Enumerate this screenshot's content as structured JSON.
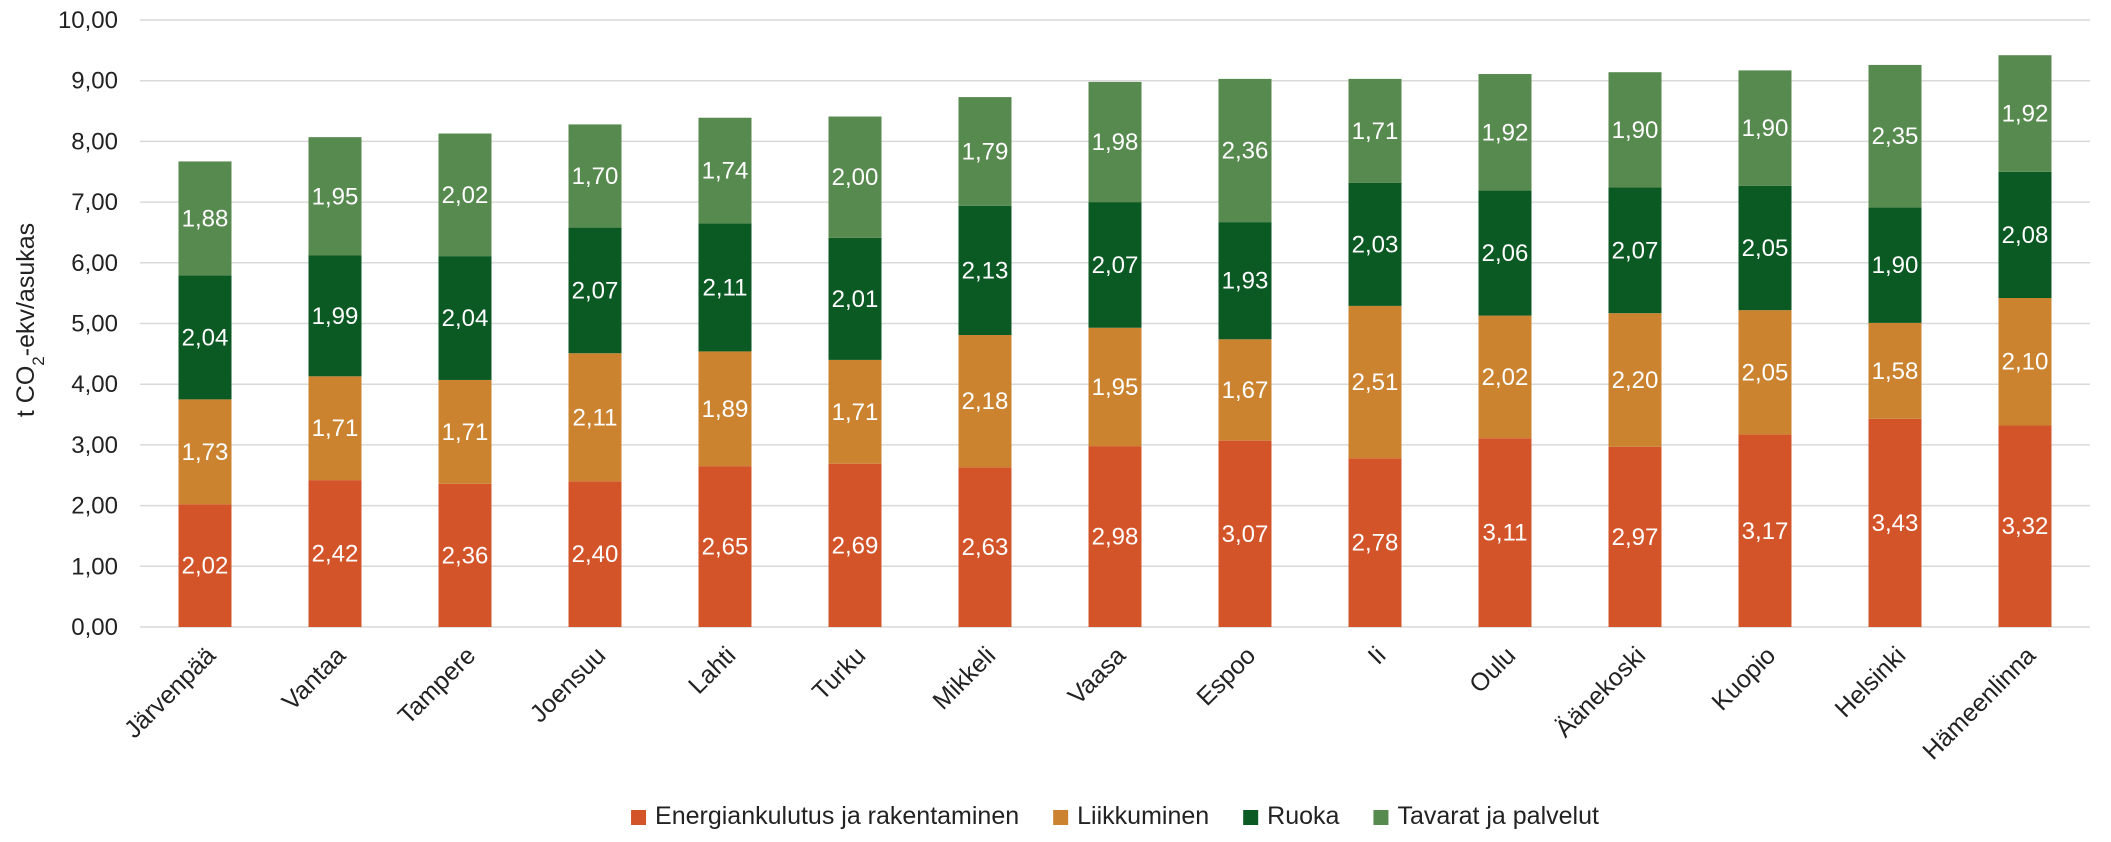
{
  "chart_data": {
    "type": "bar",
    "stacked": true,
    "ylabel_prefix": "t CO",
    "ylabel_sub": "2",
    "ylabel_suffix": "-ekv/asukas",
    "ylim": [
      0,
      10
    ],
    "ytick_step": 1,
    "ytick_labels": [
      "0,00",
      "1,00",
      "2,00",
      "3,00",
      "4,00",
      "5,00",
      "6,00",
      "7,00",
      "8,00",
      "9,00",
      "10,00"
    ],
    "grid": true,
    "legend_position": "bottom",
    "categories": [
      "Järvenpää",
      "Vantaa",
      "Tampere",
      "Joensuu",
      "Lahti",
      "Turku",
      "Mikkeli",
      "Vaasa",
      "Espoo",
      "Ii",
      "Oulu",
      "Äänekoski",
      "Kuopio",
      "Helsinki",
      "Hämeenlinna"
    ],
    "series": [
      {
        "name": "Energiankulutus ja rakentaminen",
        "color": "#d4542a",
        "values": [
          2.02,
          2.42,
          2.36,
          2.4,
          2.65,
          2.69,
          2.63,
          2.98,
          3.07,
          2.78,
          3.11,
          2.97,
          3.17,
          3.43,
          3.32
        ]
      },
      {
        "name": "Liikkuminen",
        "color": "#cc8330",
        "values": [
          1.73,
          1.71,
          1.71,
          2.11,
          1.89,
          1.71,
          2.18,
          1.95,
          1.67,
          2.51,
          2.02,
          2.2,
          2.05,
          1.58,
          2.1
        ]
      },
      {
        "name": "Ruoka",
        "color": "#0b5a24",
        "values": [
          2.04,
          1.99,
          2.04,
          2.07,
          2.11,
          2.01,
          2.13,
          2.07,
          1.93,
          2.03,
          2.06,
          2.07,
          2.05,
          1.9,
          2.08
        ]
      },
      {
        "name": "Tavarat ja palvelut",
        "color": "#578a4e",
        "values": [
          1.88,
          1.95,
          2.02,
          1.7,
          1.74,
          2.0,
          1.79,
          1.98,
          2.36,
          1.71,
          1.92,
          1.9,
          1.9,
          2.35,
          1.92
        ]
      }
    ]
  }
}
